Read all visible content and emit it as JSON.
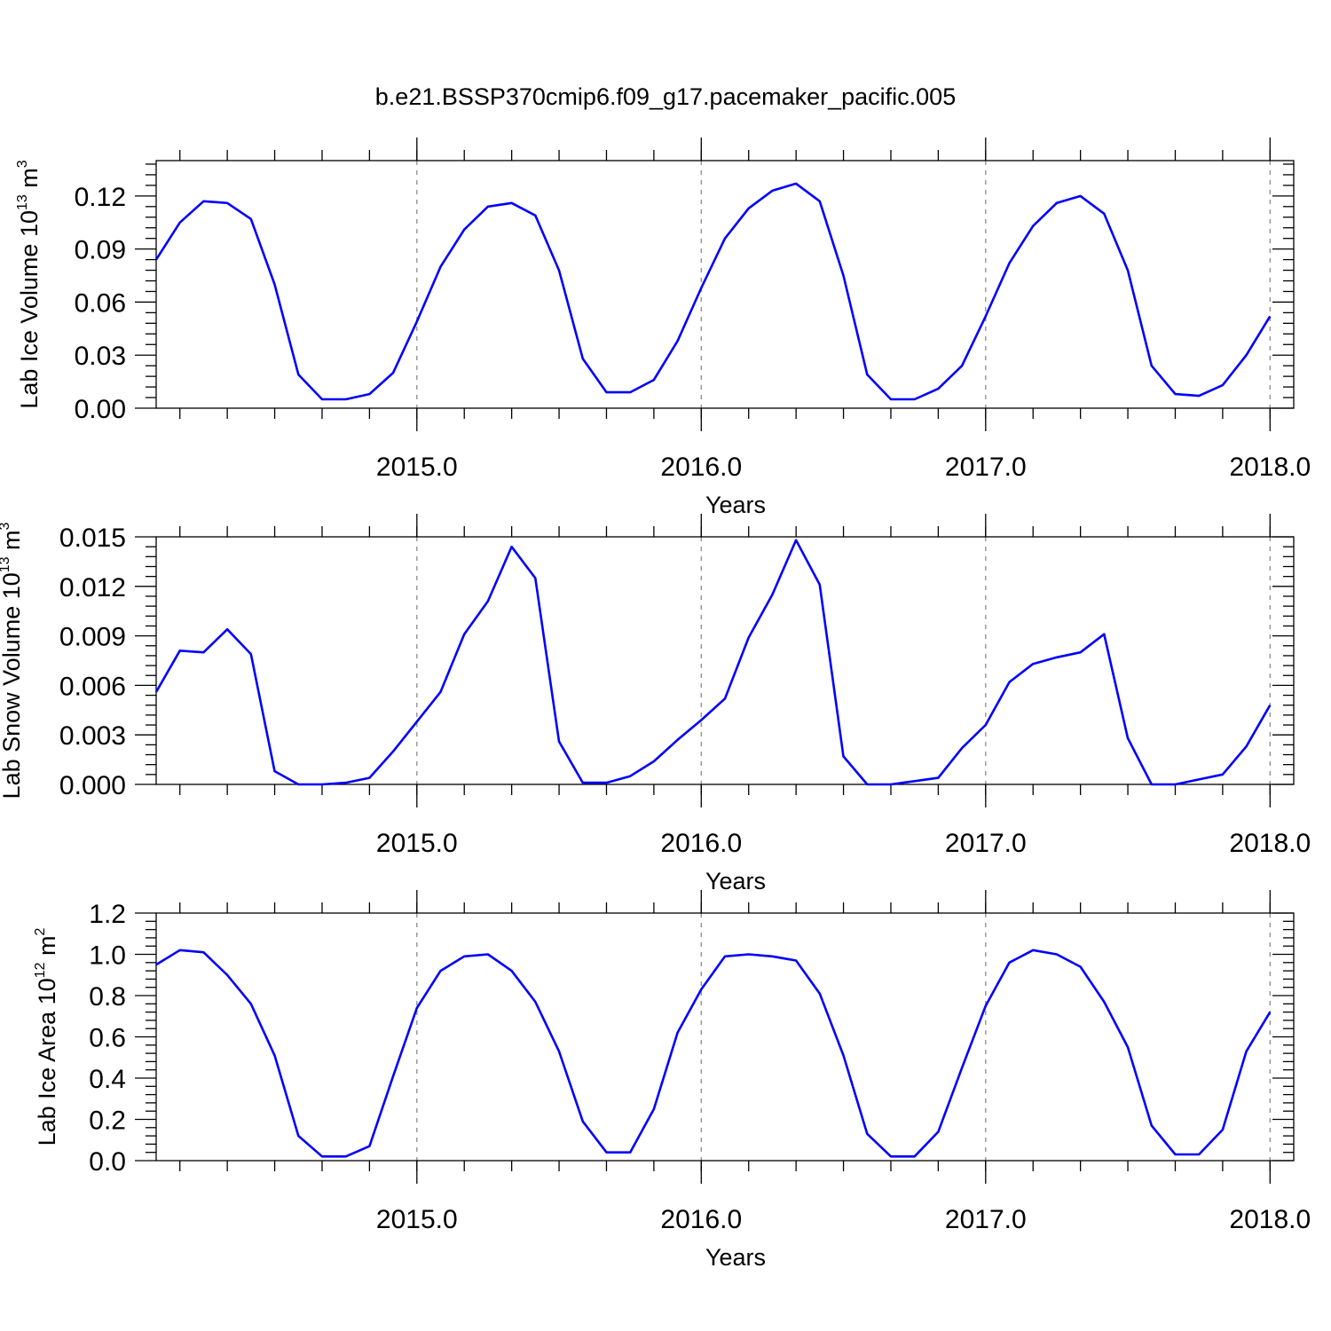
{
  "title": "b.e21.BSSP370cmip6.f09_g17.pacemaker_pacific.005",
  "chart_data": [
    {
      "type": "line",
      "ylabel": {
        "main": "Lab Ice Volume 10",
        "exp": "13",
        "unit": " m",
        "unit_exp": "3"
      },
      "xlabel": "Years",
      "xlim": [
        2014.0833,
        2018.0833
      ],
      "ylim": [
        0,
        0.14
      ],
      "yticks": [
        0.0,
        0.03,
        0.06,
        0.09,
        0.12
      ],
      "ytick_labels": [
        "0.00",
        "0.03",
        "0.06",
        "0.09",
        "0.12"
      ],
      "xticks": [
        2015.0,
        2016.0,
        2017.0,
        2018.0
      ],
      "xtick_labels": [
        "2015.0",
        "2016.0",
        "2017.0",
        "2018.0"
      ],
      "series": [
        {
          "color": "#0000ff",
          "values": [
            0.084,
            0.105,
            0.117,
            0.116,
            0.107,
            0.07,
            0.019,
            0.005,
            0.005,
            0.008,
            0.02,
            0.049,
            0.08,
            0.101,
            0.114,
            0.116,
            0.109,
            0.078,
            0.028,
            0.009,
            0.009,
            0.016,
            0.038,
            0.068,
            0.096,
            0.113,
            0.123,
            0.127,
            0.117,
            0.075,
            0.019,
            0.005,
            0.005,
            0.011,
            0.024,
            0.052,
            0.082,
            0.103,
            0.116,
            0.12,
            0.11,
            0.078,
            0.024,
            0.008,
            0.007,
            0.013,
            0.03,
            0.052
          ]
        }
      ]
    },
    {
      "type": "line",
      "ylabel": {
        "main": "Lab Snow Volume 10",
        "exp": "13",
        "unit": " m",
        "unit_exp": "3"
      },
      "xlabel": "Years",
      "xlim": [
        2014.0833,
        2018.0833
      ],
      "ylim": [
        0,
        0.015
      ],
      "yticks": [
        0.0,
        0.003,
        0.006,
        0.009,
        0.012,
        0.015
      ],
      "ytick_labels": [
        "0.000",
        "0.003",
        "0.006",
        "0.009",
        "0.012",
        "0.015"
      ],
      "xticks": [
        2015.0,
        2016.0,
        2017.0,
        2018.0
      ],
      "xtick_labels": [
        "2015.0",
        "2016.0",
        "2017.0",
        "2018.0"
      ],
      "series": [
        {
          "color": "#0000ff",
          "values": [
            0.0056,
            0.0081,
            0.008,
            0.0094,
            0.0079,
            0.0008,
            0.0,
            0.0,
            0.0001,
            0.0004,
            0.002,
            0.0038,
            0.0056,
            0.0091,
            0.0111,
            0.0144,
            0.0125,
            0.0026,
            0.0001,
            0.0001,
            0.0005,
            0.0014,
            0.0027,
            0.0039,
            0.0052,
            0.0089,
            0.0115,
            0.0148,
            0.0121,
            0.0017,
            0.0,
            0.0,
            0.0002,
            0.0004,
            0.0022,
            0.0036,
            0.0062,
            0.0073,
            0.0077,
            0.008,
            0.0091,
            0.0028,
            0.0,
            0.0,
            0.0003,
            0.0006,
            0.0023,
            0.0048
          ]
        }
      ]
    },
    {
      "type": "line",
      "ylabel": {
        "main": "Lab Ice Area 10",
        "exp": "12",
        "unit": " m",
        "unit_exp": "2"
      },
      "xlabel": "Years",
      "xlim": [
        2014.0833,
        2018.0833
      ],
      "ylim": [
        0,
        1.2
      ],
      "yticks": [
        0.0,
        0.2,
        0.4,
        0.6,
        0.8,
        1.0,
        1.2
      ],
      "ytick_labels": [
        "0.0",
        "0.2",
        "0.4",
        "0.6",
        "0.8",
        "1.0",
        "1.2"
      ],
      "xticks": [
        2015.0,
        2016.0,
        2017.0,
        2018.0
      ],
      "xtick_labels": [
        "2015.0",
        "2016.0",
        "2017.0",
        "2018.0"
      ],
      "series": [
        {
          "color": "#0000ff",
          "values": [
            0.95,
            1.02,
            1.01,
            0.9,
            0.76,
            0.51,
            0.12,
            0.02,
            0.02,
            0.07,
            0.41,
            0.74,
            0.92,
            0.99,
            1.0,
            0.92,
            0.77,
            0.53,
            0.19,
            0.04,
            0.04,
            0.25,
            0.62,
            0.83,
            0.99,
            1.0,
            0.99,
            0.97,
            0.81,
            0.51,
            0.13,
            0.02,
            0.02,
            0.14,
            0.45,
            0.75,
            0.96,
            1.02,
            1.0,
            0.94,
            0.77,
            0.55,
            0.17,
            0.03,
            0.03,
            0.15,
            0.53,
            0.72
          ]
        }
      ]
    }
  ]
}
